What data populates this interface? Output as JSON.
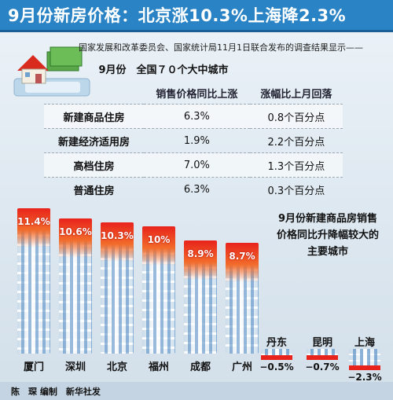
{
  "title": "9月份新房价格：北京涨10.3%上海降2.3%",
  "source_line": "国家发展和改革委员会、国家统计局11月1日联合发布的调查结果显示——",
  "table": {
    "title": "9月份　全国７０个大中城市",
    "headers": [
      "",
      "销售价格同比上涨",
      "涨幅比上月回落"
    ],
    "rows": [
      {
        "name": "新建商品住房",
        "yoy": "6.3%",
        "drop": "0.8个百分点"
      },
      {
        "name": "新建经济适用房",
        "yoy": "1.9%",
        "drop": "2.2个百分点"
      },
      {
        "name": "高档住房",
        "yoy": "7.0%",
        "drop": "1.3个百分点"
      },
      {
        "name": "普通住房",
        "yoy": "6.3%",
        "drop": "0.3个百分点"
      }
    ]
  },
  "side_note": "9月份新建商品房销售价格同比升降幅较大的主要城市",
  "credit": "陈　琛 编制　新华社发",
  "colors": {
    "title_bg": "#2a83c4",
    "bar_top": "#e8231c"
  },
  "chart_data": {
    "type": "bar",
    "title": "9月份新建商品房销售价格同比升降幅较大的主要城市",
    "categories": [
      "厦门",
      "深圳",
      "北京",
      "福州",
      "成都",
      "广州",
      "丹东",
      "昆明",
      "上海"
    ],
    "values": [
      11.4,
      10.6,
      10.3,
      10.0,
      8.9,
      8.7,
      -0.5,
      -0.7,
      -2.3
    ],
    "labels": [
      "11.4%",
      "10.6%",
      "10.3%",
      "10%",
      "8.9%",
      "8.7%",
      "−0.5%",
      "−0.7%",
      "−2.3%"
    ],
    "unit": "%"
  }
}
